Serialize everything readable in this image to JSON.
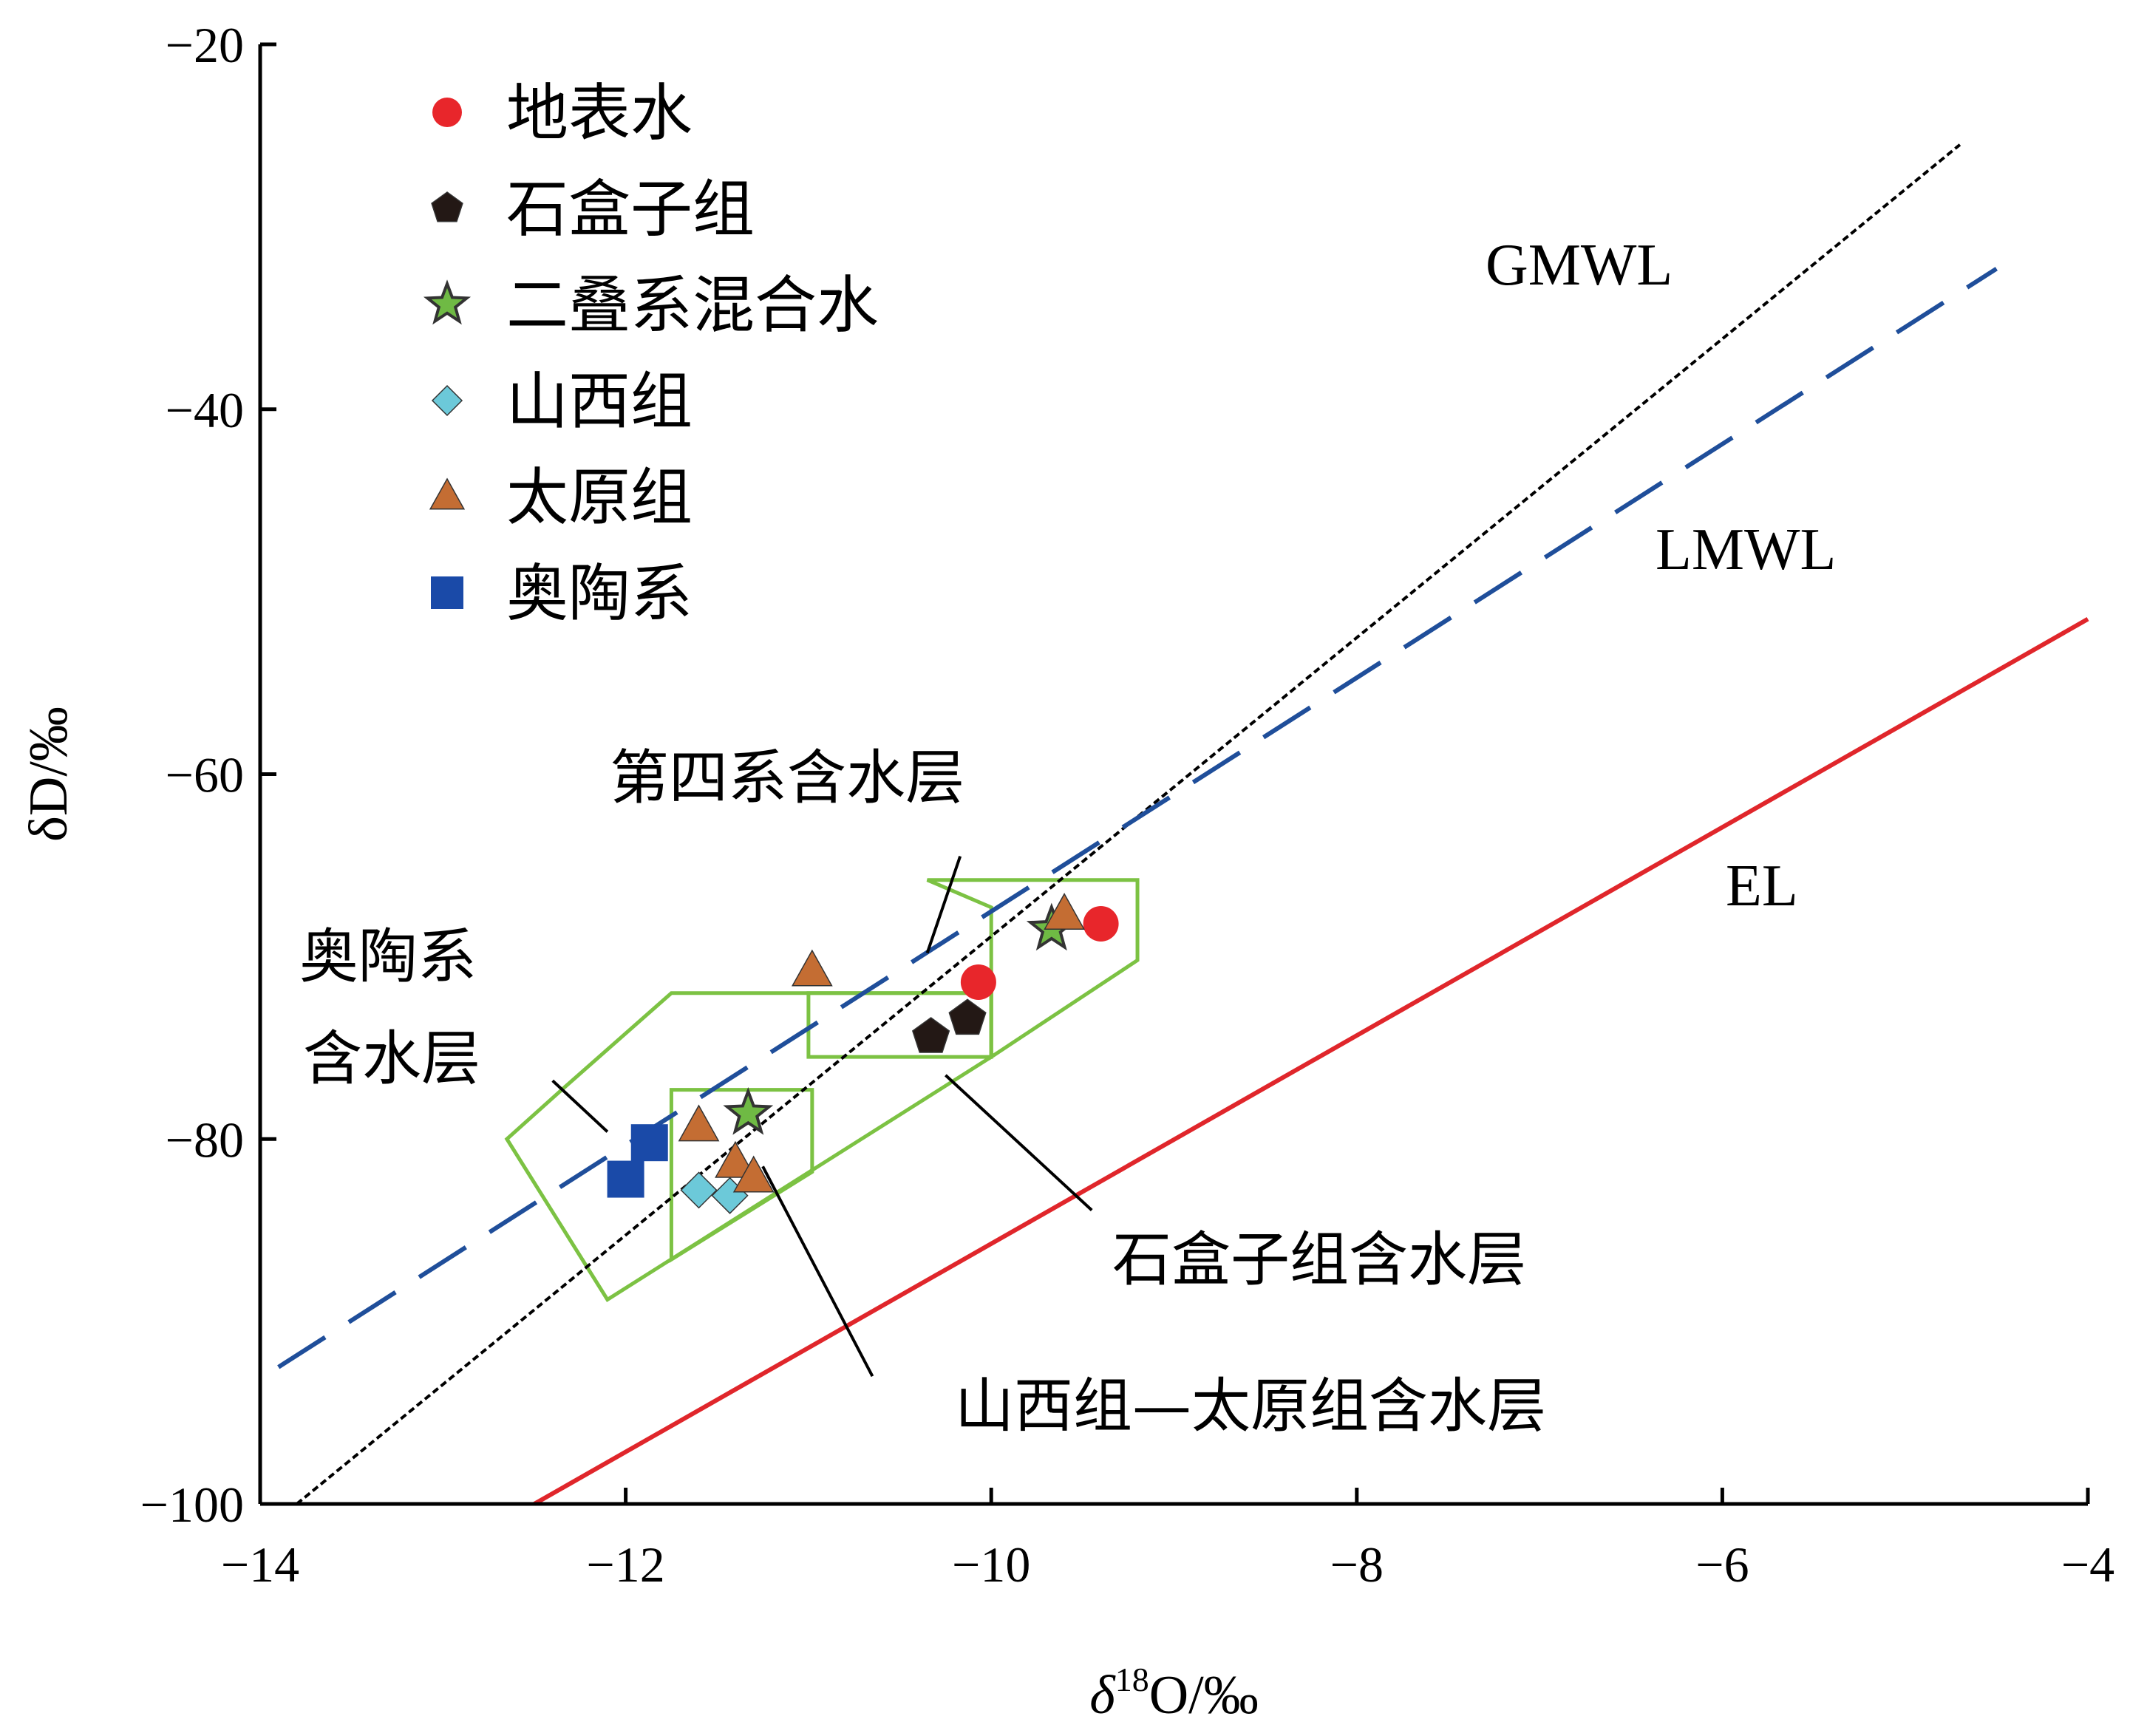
{
  "chart_data": {
    "type": "scatter",
    "xlabel": "δ18O/‰",
    "xlabel_parts": {
      "prefix": "δ",
      "sup": "18",
      "suffix": "O/‰"
    },
    "ylabel": "δD/‰",
    "xlim": [
      -14,
      -4
    ],
    "ylim": [
      -100,
      -20
    ],
    "xticks": [
      -14,
      -12,
      -10,
      -8,
      -6,
      -4
    ],
    "yticks": [
      -100,
      -80,
      -60,
      -40,
      -20
    ],
    "xtick_labels": [
      "−14",
      "−12",
      "−10",
      "−8",
      "−6",
      "−4"
    ],
    "ytick_labels": [
      "−100",
      "−80",
      "−60",
      "−40",
      "−20"
    ],
    "grid": false,
    "legend_position": "top-left",
    "legend": [
      {
        "label": "地表水",
        "marker": "circle",
        "color": "#e8262b"
      },
      {
        "label": "石盒子组",
        "marker": "pentagon",
        "color": "#231815"
      },
      {
        "label": "二叠系混合水",
        "marker": "star",
        "color": "#6fba44"
      },
      {
        "label": "山西组",
        "marker": "diamond",
        "color": "#6cc9d9"
      },
      {
        "label": "太原组",
        "marker": "triangle",
        "color": "#c46d33"
      },
      {
        "label": "奥陶系",
        "marker": "square",
        "color": "#1a4aa8"
      }
    ],
    "lines": [
      {
        "label": "GMWL",
        "color": "#000000",
        "style": "dotted",
        "points": [
          [
            -13.8,
            -100
          ],
          [
            -4.7,
            -25.5
          ]
        ]
      },
      {
        "label": "LMWL",
        "color": "#1f4e9a",
        "style": "dashed",
        "points": [
          [
            -13.9,
            -92.5
          ],
          [
            -4.5,
            -32.3
          ]
        ]
      },
      {
        "label": "EL",
        "color": "#e0262b",
        "style": "solid",
        "points": [
          [
            -12.5,
            -100
          ],
          [
            -4.0,
            -51.5
          ]
        ]
      }
    ],
    "series": [
      {
        "legend_index": 0,
        "points": [
          [
            -10.07,
            -71.4
          ],
          [
            -9.4,
            -68.2
          ]
        ]
      },
      {
        "legend_index": 1,
        "points": [
          [
            -10.33,
            -74.4
          ],
          [
            -10.13,
            -73.4
          ]
        ]
      },
      {
        "legend_index": 2,
        "points": [
          [
            -11.33,
            -78.6
          ],
          [
            -9.67,
            -68.5
          ]
        ]
      },
      {
        "legend_index": 3,
        "points": [
          [
            -11.6,
            -82.8
          ],
          [
            -11.43,
            -83.1
          ]
        ]
      },
      {
        "legend_index": 4,
        "points": [
          [
            -11.6,
            -79.3
          ],
          [
            -11.4,
            -81.3
          ],
          [
            -11.3,
            -82.1
          ],
          [
            -10.98,
            -70.8
          ],
          [
            -9.6,
            -67.7
          ]
        ]
      },
      {
        "legend_index": 5,
        "points": [
          [
            -12.0,
            -82.2
          ],
          [
            -11.87,
            -80.2
          ]
        ]
      }
    ],
    "regions": [
      {
        "label": "奥陶系含水层",
        "polygon": [
          [
            -12.65,
            -80
          ],
          [
            -12.1,
            -88.8
          ],
          [
            -10.0,
            -75.5
          ],
          [
            -10.0,
            -72.0
          ],
          [
            -11.75,
            -72.0
          ],
          [
            -12.35,
            -77.3
          ]
        ]
      },
      {
        "label": "第四系含水层",
        "polygon": [
          [
            -10.0,
            -75.5
          ],
          [
            -9.2,
            -70.2
          ],
          [
            -9.2,
            -65.8
          ],
          [
            -10.35,
            -65.8
          ],
          [
            -10.0,
            -67.3
          ],
          [
            -10.0,
            -72.0
          ]
        ]
      },
      {
        "label": "石盒子组含水层",
        "polygon": [
          [
            -11.0,
            -72.0
          ],
          [
            -10.0,
            -72.0
          ],
          [
            -10.0,
            -75.5
          ],
          [
            -11.0,
            -75.5
          ]
        ]
      },
      {
        "label": "山西组—太原组含水层",
        "polygon": [
          [
            -11.75,
            -77.3
          ],
          [
            -10.98,
            -77.3
          ],
          [
            -10.98,
            -81.8
          ],
          [
            -11.75,
            -86.6
          ]
        ]
      }
    ],
    "annotations": [
      {
        "text": "第四系含水层",
        "pointer": [
          [
            -10.17,
            -64.5
          ],
          [
            -10.35,
            -69.8
          ]
        ]
      },
      {
        "text": "奥陶系",
        "line2": "含水层",
        "pointer": [
          [
            -12.4,
            -76.8
          ],
          [
            -12.1,
            -79.6
          ]
        ]
      },
      {
        "text": "石盒子组含水层",
        "pointer": [
          [
            -9.45,
            -83.9
          ],
          [
            -10.25,
            -76.5
          ]
        ]
      },
      {
        "text": "山西组—太原组含水层",
        "pointer": [
          [
            -10.65,
            -93.0
          ],
          [
            -11.25,
            -81.5
          ]
        ]
      }
    ]
  }
}
